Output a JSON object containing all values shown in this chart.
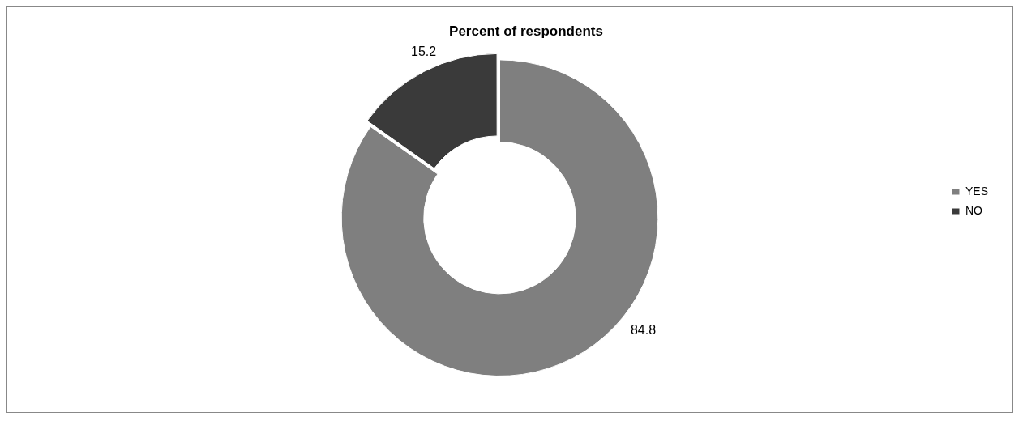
{
  "chart_data": {
    "type": "donut",
    "title": "Percent of respondents",
    "categories": [
      "YES",
      "NO"
    ],
    "values": [
      84.8,
      15.2
    ],
    "colors": [
      "#7f7f7f",
      "#3a3a3a"
    ],
    "data_labels": true,
    "legend": "right"
  }
}
